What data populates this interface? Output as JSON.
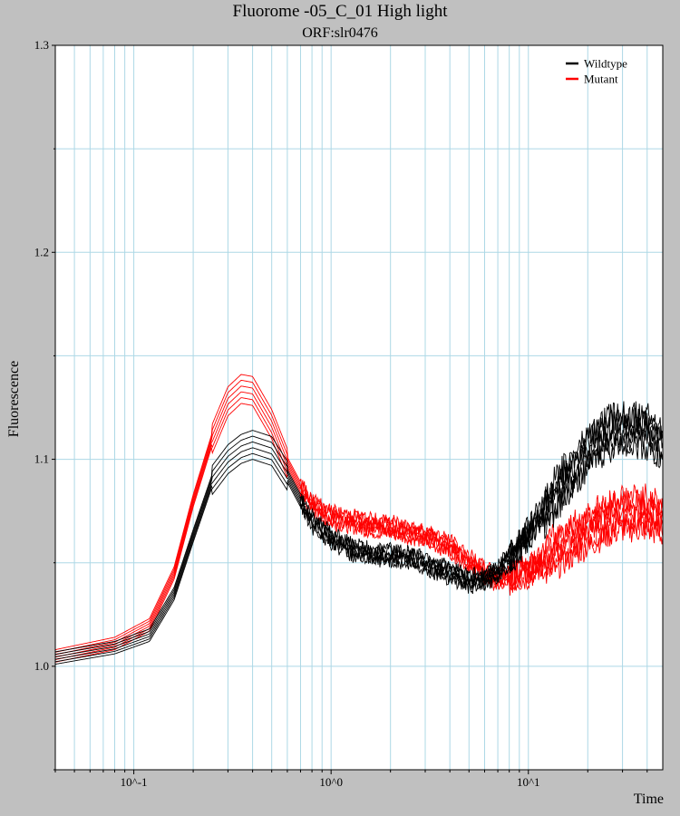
{
  "chart_data": {
    "type": "line",
    "title": "Fluorome -05_C_01 High light",
    "subtitle": "ORF:slr0476",
    "xlabel": "Time",
    "ylabel": "Fluorescence",
    "x_scale": "log",
    "xlim": [
      0.04,
      48
    ],
    "ylim": [
      0.95,
      1.3
    ],
    "y_ticks": [
      {
        "value": 1.0,
        "label": "1.0"
      },
      {
        "value": 1.1,
        "label": "1.1"
      },
      {
        "value": 1.2,
        "label": "1.2"
      },
      {
        "value": 1.3,
        "label": "1.3"
      }
    ],
    "x_ticks": [
      {
        "value": 0.1,
        "label": "10^-1"
      },
      {
        "value": 1,
        "label": "10^0"
      },
      {
        "value": 10,
        "label": "10^1"
      }
    ],
    "grid": true,
    "legend_position": "top-right",
    "series": [
      {
        "name": "Wildtype",
        "color": "#000000",
        "replicates": 6,
        "x": [
          0.04,
          0.08,
          0.12,
          0.16,
          0.2,
          0.25,
          0.3,
          0.35,
          0.4,
          0.5,
          0.6,
          0.7,
          0.8,
          1.0,
          1.3,
          1.6,
          2.0,
          2.5,
          3.0,
          4.0,
          5.0,
          6.0,
          7.0,
          8.0,
          10.0,
          12.0,
          15.0,
          20.0,
          25.0,
          30.0,
          40.0,
          48.0
        ],
        "y": [
          1.004,
          1.009,
          1.015,
          1.035,
          1.063,
          1.09,
          1.1,
          1.105,
          1.107,
          1.104,
          1.092,
          1.08,
          1.07,
          1.062,
          1.056,
          1.054,
          1.054,
          1.052,
          1.05,
          1.045,
          1.041,
          1.042,
          1.046,
          1.052,
          1.064,
          1.075,
          1.088,
          1.104,
          1.112,
          1.115,
          1.113,
          1.106
        ]
      },
      {
        "name": "Mutant",
        "color": "#ff0000",
        "replicates": 6,
        "x": [
          0.04,
          0.08,
          0.12,
          0.16,
          0.2,
          0.25,
          0.3,
          0.35,
          0.4,
          0.5,
          0.6,
          0.7,
          0.8,
          1.0,
          1.3,
          1.6,
          2.0,
          2.5,
          3.0,
          4.0,
          5.0,
          6.0,
          7.0,
          8.0,
          10.0,
          12.0,
          15.0,
          20.0,
          25.0,
          30.0,
          40.0,
          48.0
        ],
        "y": [
          1.005,
          1.011,
          1.02,
          1.045,
          1.08,
          1.11,
          1.128,
          1.134,
          1.133,
          1.117,
          1.098,
          1.086,
          1.078,
          1.072,
          1.07,
          1.068,
          1.067,
          1.065,
          1.063,
          1.058,
          1.051,
          1.045,
          1.042,
          1.043,
          1.046,
          1.051,
          1.058,
          1.066,
          1.071,
          1.074,
          1.074,
          1.071
        ]
      }
    ]
  }
}
